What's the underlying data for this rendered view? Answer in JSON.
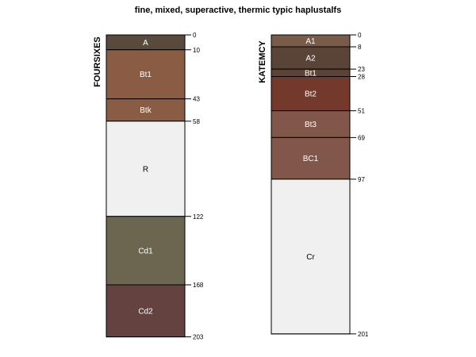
{
  "title": "fine, mixed, superactive, thermic typic haplustalfs",
  "profiles": [
    {
      "name": "FOURSIXES",
      "max_depth": 203,
      "horizons": [
        {
          "name": "A",
          "top": 0,
          "bottom": 10,
          "color": "#5a4a3c",
          "text_color": "#ffffff"
        },
        {
          "name": "Bt1",
          "top": 10,
          "bottom": 43,
          "color": "#8a5c43",
          "text_color": "#ffffff"
        },
        {
          "name": "Btk",
          "top": 43,
          "bottom": 58,
          "color": "#8a5c43",
          "text_color": "#ffffff"
        },
        {
          "name": "R",
          "top": 58,
          "bottom": 122,
          "color": "#f0f0f0",
          "text_color": "#000000"
        },
        {
          "name": "Cd1",
          "top": 122,
          "bottom": 168,
          "color": "#6b6650",
          "text_color": "#ffffff"
        },
        {
          "name": "Cd2",
          "top": 168,
          "bottom": 203,
          "color": "#634240",
          "text_color": "#ffffff"
        }
      ],
      "depth_ticks": [
        0,
        10,
        43,
        58,
        122,
        168,
        203
      ]
    },
    {
      "name": "KATEMCY",
      "max_depth": 201,
      "horizons": [
        {
          "name": "A1",
          "top": 0,
          "bottom": 8,
          "color": "#7a5a48",
          "text_color": "#ffffff"
        },
        {
          "name": "A2",
          "top": 8,
          "bottom": 23,
          "color": "#5a4438",
          "text_color": "#ffffff"
        },
        {
          "name": "Bt1",
          "top": 23,
          "bottom": 28,
          "color": "#5e4234",
          "text_color": "#ffffff"
        },
        {
          "name": "Bt2",
          "top": 28,
          "bottom": 51,
          "color": "#73392a",
          "text_color": "#ffffff"
        },
        {
          "name": "Bt3",
          "top": 51,
          "bottom": 69,
          "color": "#81574a",
          "text_color": "#ffffff"
        },
        {
          "name": "BC1",
          "top": 69,
          "bottom": 97,
          "color": "#81574a",
          "text_color": "#ffffff"
        },
        {
          "name": "Cr",
          "top": 97,
          "bottom": 201,
          "color": "#f0f0f0",
          "text_color": "#000000"
        }
      ],
      "depth_ticks": [
        0,
        8,
        23,
        28,
        51,
        69,
        97,
        201
      ]
    }
  ]
}
